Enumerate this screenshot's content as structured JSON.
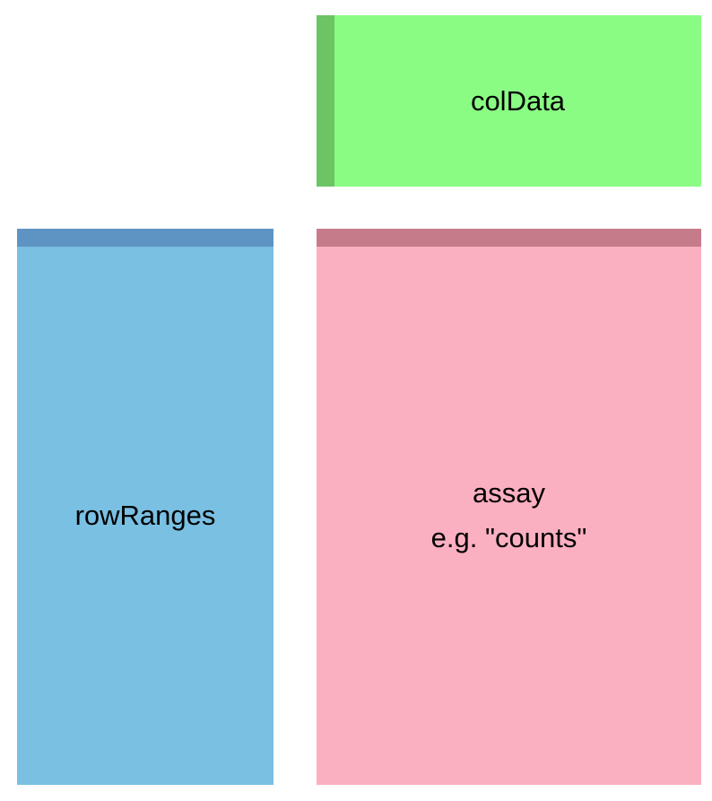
{
  "diagram": {
    "coldata": {
      "label": "colData",
      "fill": "#8afc84",
      "stripe": "#6cc465"
    },
    "rowranges": {
      "label": "rowRanges",
      "fill": "#79c0e3",
      "stripe": "#5e94c4"
    },
    "assay": {
      "label": "assay",
      "sublabel": "e.g. \"counts\"",
      "fill": "#fbb0c1",
      "stripe": "#c67b8b"
    }
  }
}
